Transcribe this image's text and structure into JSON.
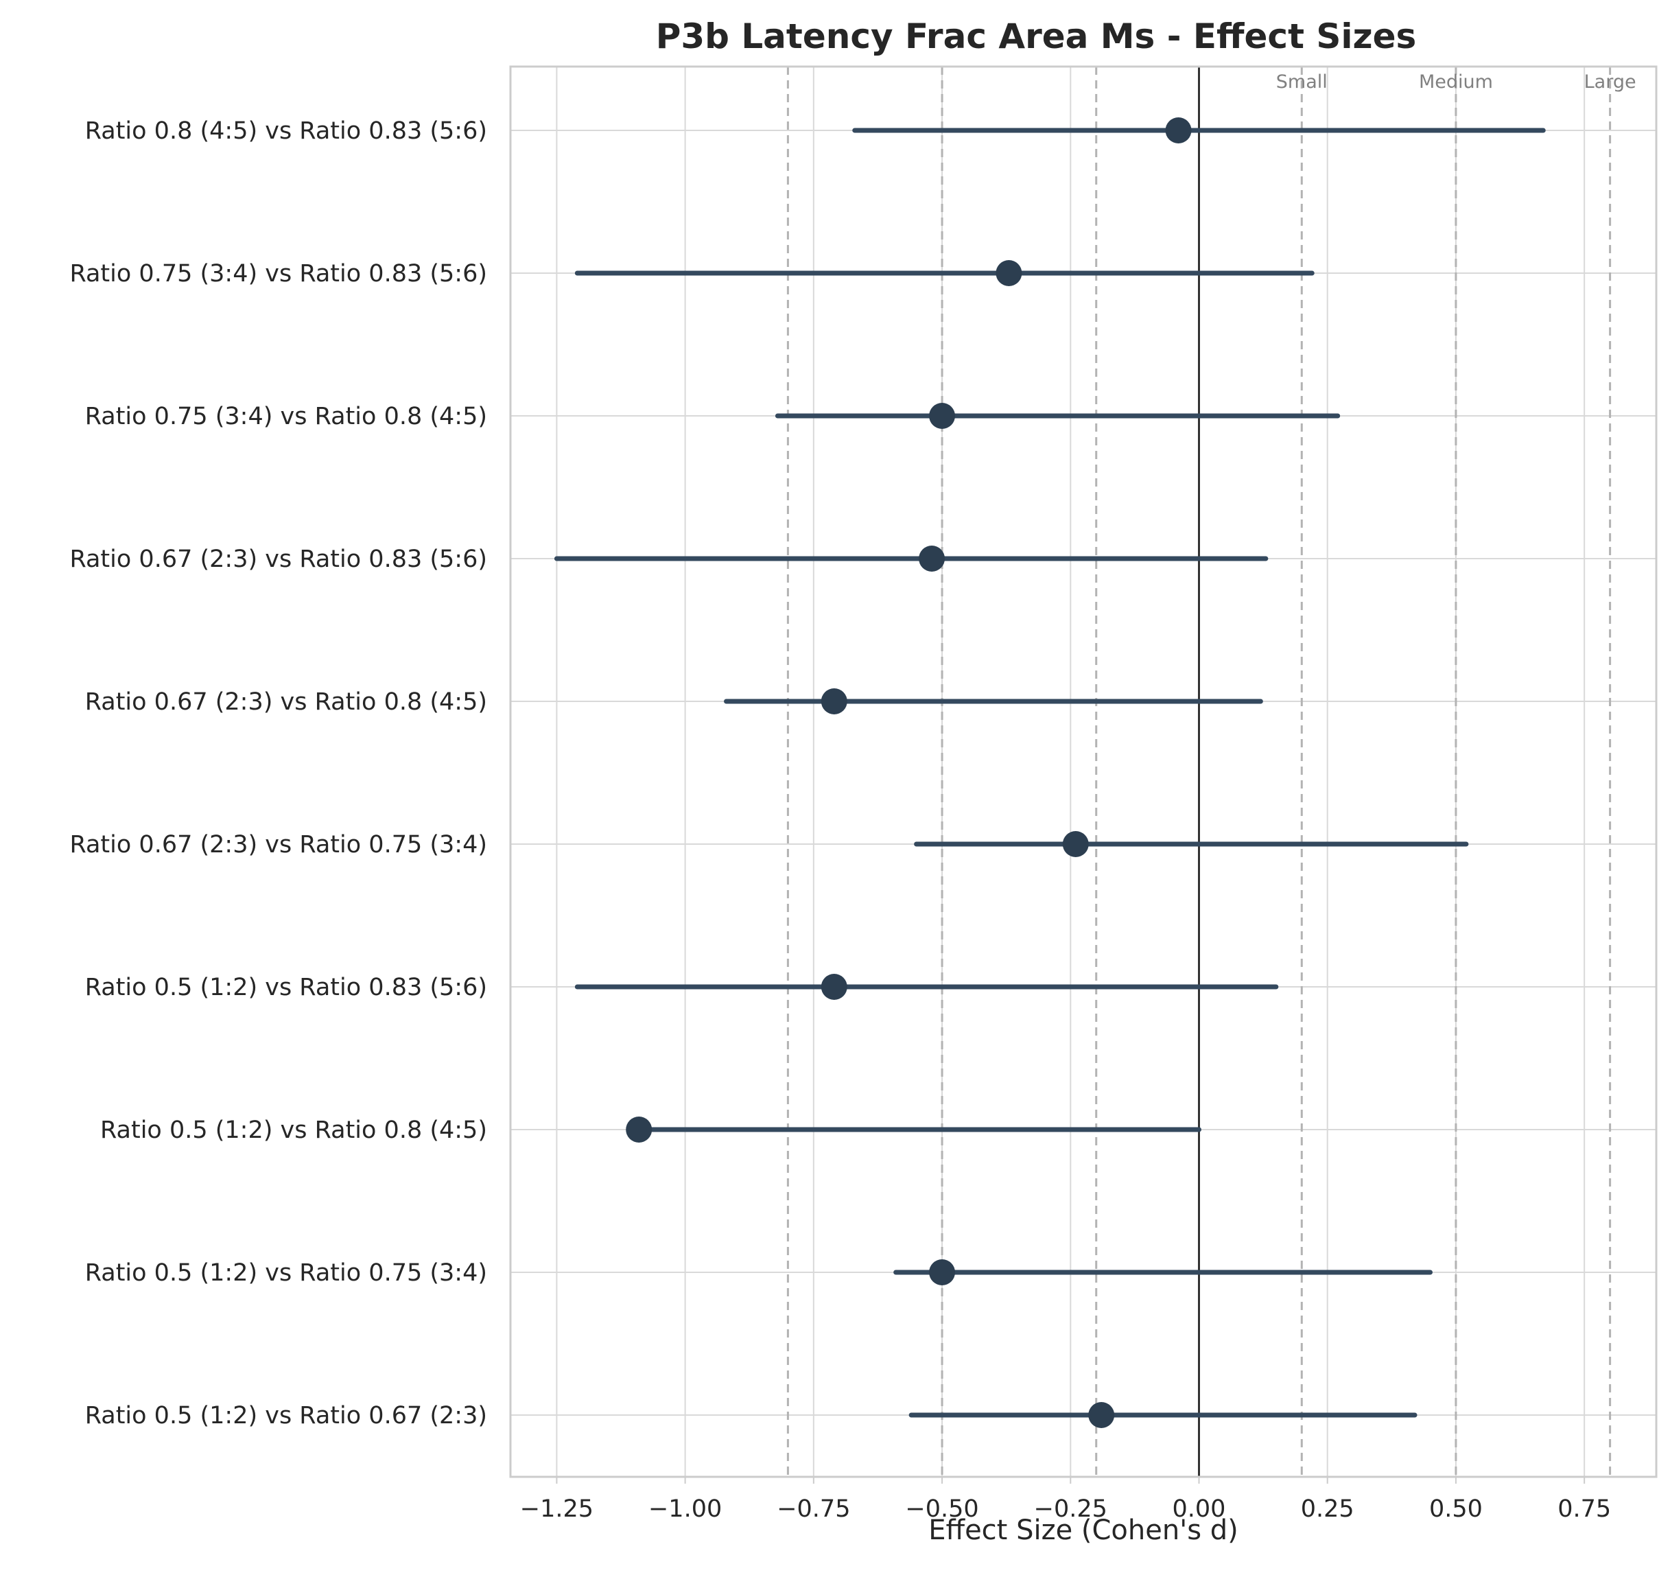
{
  "chart_data": {
    "type": "scatter",
    "subtype": "forest-plot",
    "title": "P3b Latency Frac Area Ms - Effect Sizes",
    "xlabel": "Effect Size (Cohen's d)",
    "ylabel": "",
    "xlim": [
      -1.34,
      0.89
    ],
    "x_ticks": [
      -1.25,
      -1.0,
      -0.75,
      -0.5,
      -0.25,
      0.0,
      0.25,
      0.5,
      0.75
    ],
    "x_tick_labels": [
      "−1.25",
      "−1.00",
      "−0.75",
      "−0.50",
      "−0.25",
      "0.00",
      "0.25",
      "0.50",
      "0.75"
    ],
    "grid": true,
    "zero_line": 0,
    "reference_lines": [
      {
        "value": 0.2,
        "label": "Small"
      },
      {
        "value": 0.5,
        "label": "Medium"
      },
      {
        "value": 0.8,
        "label": "Large"
      },
      {
        "value": -0.2,
        "label": ""
      },
      {
        "value": -0.5,
        "label": ""
      },
      {
        "value": -0.8,
        "label": ""
      }
    ],
    "comparisons": [
      {
        "label": "Ratio 0.8 (4:5) vs Ratio 0.83 (5:6)",
        "d": -0.04,
        "ci": [
          -0.67,
          0.67
        ]
      },
      {
        "label": "Ratio 0.75 (3:4) vs Ratio 0.83 (5:6)",
        "d": -0.37,
        "ci": [
          -1.21,
          0.22
        ]
      },
      {
        "label": "Ratio 0.75 (3:4) vs Ratio 0.8 (4:5)",
        "d": -0.5,
        "ci": [
          -0.82,
          0.27
        ]
      },
      {
        "label": "Ratio 0.67 (2:3) vs Ratio 0.83 (5:6)",
        "d": -0.52,
        "ci": [
          -1.25,
          0.13
        ]
      },
      {
        "label": "Ratio 0.67 (2:3) vs Ratio 0.8 (4:5)",
        "d": -0.71,
        "ci": [
          -0.92,
          0.12
        ]
      },
      {
        "label": "Ratio 0.67 (2:3) vs Ratio 0.75 (3:4)",
        "d": -0.24,
        "ci": [
          -0.55,
          0.52
        ]
      },
      {
        "label": "Ratio 0.5 (1:2) vs Ratio 0.83 (5:6)",
        "d": -0.71,
        "ci": [
          -1.21,
          0.15
        ]
      },
      {
        "label": "Ratio 0.5 (1:2) vs Ratio 0.8 (4:5)",
        "d": -1.09,
        "ci": [
          -1.09,
          0.0
        ]
      },
      {
        "label": "Ratio 0.5 (1:2) vs Ratio 0.75 (3:4)",
        "d": -0.5,
        "ci": [
          -0.59,
          0.45
        ]
      },
      {
        "label": "Ratio 0.5 (1:2) vs Ratio 0.67 (2:3)",
        "d": -0.19,
        "ci": [
          -0.56,
          0.42
        ]
      }
    ],
    "colors": {
      "point": "#2c3e50",
      "ci_line": "#34495e",
      "grid": "#d9d9d9",
      "reference": "#b3b3b3",
      "zero_line": "#333333",
      "frame": "#cccccc"
    }
  }
}
